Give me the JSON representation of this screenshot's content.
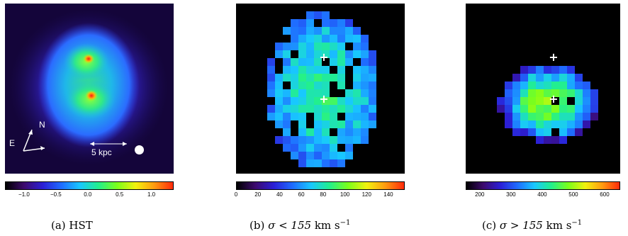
{
  "panels": [
    {
      "id": "a",
      "caption": "(a) HST",
      "compass": {
        "north": "N",
        "east": "E"
      },
      "scale_bar_label": "5 kpc",
      "colorbar": {
        "ticks": [
          "−1.0",
          "−0.5",
          "0.0",
          "0.5",
          "1.0"
        ],
        "tick_values": [
          -1.0,
          -0.5,
          0.0,
          0.5,
          1.0
        ],
        "range": [
          -1.3,
          1.35
        ]
      }
    },
    {
      "id": "b",
      "caption_prefix": "(b) ",
      "caption_math": "σ < 155",
      "caption_units": " km s",
      "caption_exp": "−1",
      "colorbar": {
        "ticks": [
          "0",
          "20",
          "40",
          "60",
          "80",
          "100",
          "120",
          "140"
        ],
        "tick_values": [
          0,
          20,
          40,
          60,
          80,
          100,
          120,
          140
        ],
        "range": [
          0,
          155
        ]
      }
    },
    {
      "id": "c",
      "caption_prefix": "(c) ",
      "caption_math": "σ > 155",
      "caption_units": " km s",
      "caption_exp": "−1",
      "colorbar": {
        "ticks": [
          "200",
          "300",
          "400",
          "500",
          "600"
        ],
        "tick_values": [
          200,
          300,
          400,
          500,
          600
        ],
        "range": [
          155,
          650
        ]
      }
    }
  ],
  "colors": {
    "background": "#000000",
    "colormap": [
      "#000000",
      "#3d0a6e",
      "#2b1fd6",
      "#1f6cff",
      "#18c8ff",
      "#22f08c",
      "#7cff1a",
      "#f2f20e",
      "#ff9a10",
      "#ff2a0a"
    ]
  }
}
